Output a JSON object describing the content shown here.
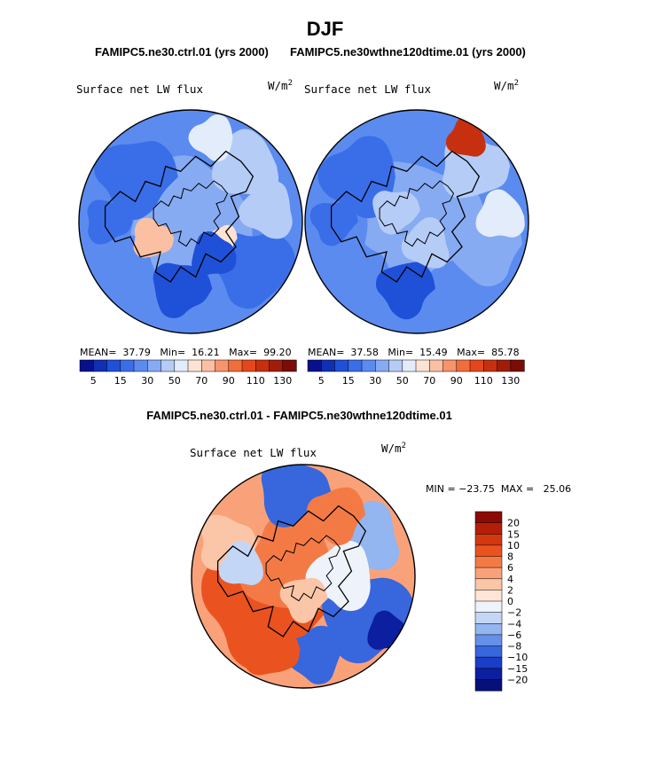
{
  "figure": {
    "title": "DJF",
    "top_subtitle_left": "FAMIPC5.ne30.ctrl.01 (yrs 2000)",
    "top_subtitle_right": "FAMIPC5.ne30wthne120dtime.01 (yrs 2000)",
    "diff_subtitle": "FAMIPC5.ne30.ctrl.01 - FAMIPC5.ne30wthne120dtime.01"
  },
  "chart_data": [
    {
      "type": "heatmap",
      "projection": "north-polar-stereographic",
      "title": "Surface net LW flux",
      "units": "W/m",
      "units_exp": "2",
      "case": "FAMIPC5.ne30.ctrl.01 (yrs 2000)",
      "stats": {
        "mean_label": "MEAN=",
        "mean": "37.79",
        "min_label": "Min=",
        "min": "16.21",
        "max_label": "Max=",
        "max": "99.20"
      },
      "levels": [
        5,
        10,
        15,
        20,
        30,
        40,
        50,
        60,
        70,
        80,
        90,
        100,
        110,
        120,
        130
      ],
      "tick_labels": [
        "5",
        "15",
        "30",
        "50",
        "70",
        "90",
        "110",
        "130"
      ],
      "colors": [
        "#08108c",
        "#0f2fb5",
        "#1f50d8",
        "#3a6ee8",
        "#5b8bef",
        "#86abf3",
        "#b5ccf7",
        "#e3ecfb",
        "#fde3d4",
        "#fbc0a3",
        "#f7946b",
        "#f26d3c",
        "#e5471a",
        "#c7300f",
        "#a01d0a",
        "#7a0d06"
      ]
    },
    {
      "type": "heatmap",
      "projection": "north-polar-stereographic",
      "title": "Surface net LW flux",
      "units": "W/m",
      "units_exp": "2",
      "case": "FAMIPC5.ne30wthne120dtime.01 (yrs 2000)",
      "stats": {
        "mean_label": "MEAN=",
        "mean": "37.58",
        "min_label": "Min=",
        "min": "15.49",
        "max_label": "Max=",
        "max": "85.78"
      },
      "levels": [
        5,
        10,
        15,
        20,
        30,
        40,
        50,
        60,
        70,
        80,
        90,
        100,
        110,
        120,
        130
      ],
      "tick_labels": [
        "5",
        "15",
        "30",
        "50",
        "70",
        "90",
        "110",
        "130"
      ],
      "colors": [
        "#08108c",
        "#0f2fb5",
        "#1f50d8",
        "#3a6ee8",
        "#5b8bef",
        "#86abf3",
        "#b5ccf7",
        "#e3ecfb",
        "#fde3d4",
        "#fbc0a3",
        "#f7946b",
        "#f26d3c",
        "#e5471a",
        "#c7300f",
        "#a01d0a",
        "#7a0d06"
      ]
    },
    {
      "type": "heatmap",
      "projection": "north-polar-stereographic",
      "title": "Surface net LW flux",
      "units": "W/m",
      "units_exp": "2",
      "case": "FAMIPC5.ne30.ctrl.01 - FAMIPC5.ne30wthne120dtime.01",
      "stats": {
        "min_label": "MIN =",
        "min": "−23.75",
        "max_label": "MAX =",
        "max": "25.06"
      },
      "levels": [
        20,
        15,
        10,
        8,
        6,
        4,
        2,
        0,
        -2,
        -4,
        -6,
        -8,
        -10,
        -15,
        -20
      ],
      "tick_labels": [
        "20",
        "15",
        "10",
        "8",
        "6",
        "4",
        "2",
        "0",
        "−2",
        "−4",
        "−6",
        "−8",
        "−10",
        "−15",
        "−20"
      ],
      "colors": [
        "#8c0a04",
        "#b41f0a",
        "#d3380f",
        "#ea5320",
        "#f47a45",
        "#f9a27a",
        "#fbc6a8",
        "#fde6d8",
        "#eef3fb",
        "#c3d6f6",
        "#93b5f0",
        "#6590e9",
        "#3866dc",
        "#1a3ec7",
        "#0b1fa0",
        "#06107a"
      ]
    }
  ]
}
